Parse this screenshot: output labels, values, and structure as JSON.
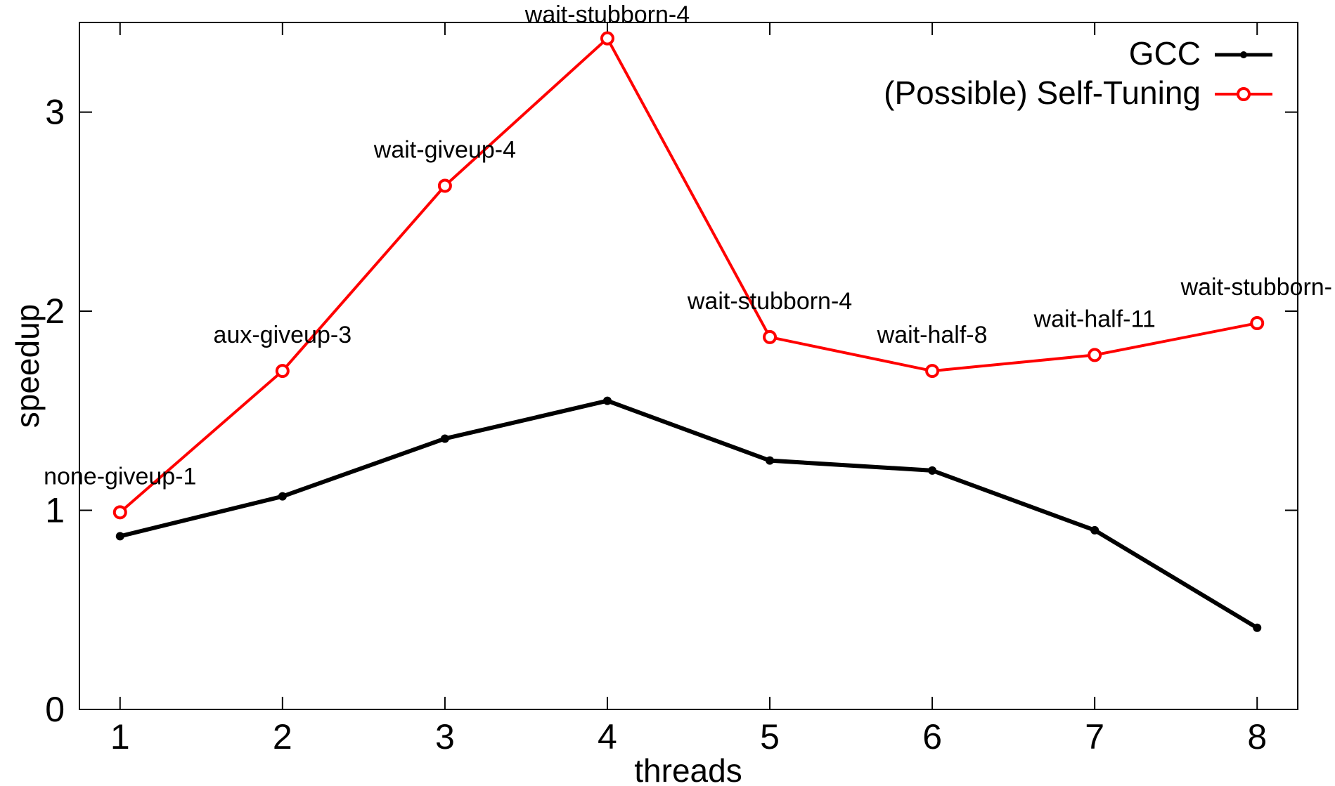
{
  "chart_data": {
    "type": "line",
    "title": "",
    "xlabel": "threads",
    "ylabel": "speedup",
    "x": [
      1,
      2,
      3,
      4,
      5,
      6,
      7,
      8
    ],
    "xlim": [
      0.75,
      8.25
    ],
    "ylim": [
      0,
      3.45
    ],
    "xticks": [
      1,
      2,
      3,
      4,
      5,
      6,
      7,
      8
    ],
    "yticks": [
      0,
      1,
      2,
      3
    ],
    "grid": false,
    "legend_position": "top-right",
    "series": [
      {
        "name": "GCC",
        "color": "#000000",
        "marker": "filled-dot",
        "values": [
          0.87,
          1.07,
          1.36,
          1.55,
          1.25,
          1.2,
          0.9,
          0.41
        ]
      },
      {
        "name": "(Possible) Self-Tuning",
        "color": "#ff0000",
        "marker": "open-circle",
        "values": [
          0.99,
          1.7,
          2.63,
          3.37,
          1.87,
          1.7,
          1.78,
          1.94
        ],
        "point_labels": [
          "none-giveup-1",
          "aux-giveup-3",
          "wait-giveup-4",
          "wait-stubborn-4",
          "wait-stubborn-4",
          "wait-half-8",
          "wait-half-11",
          "wait-stubborn-"
        ]
      }
    ]
  }
}
